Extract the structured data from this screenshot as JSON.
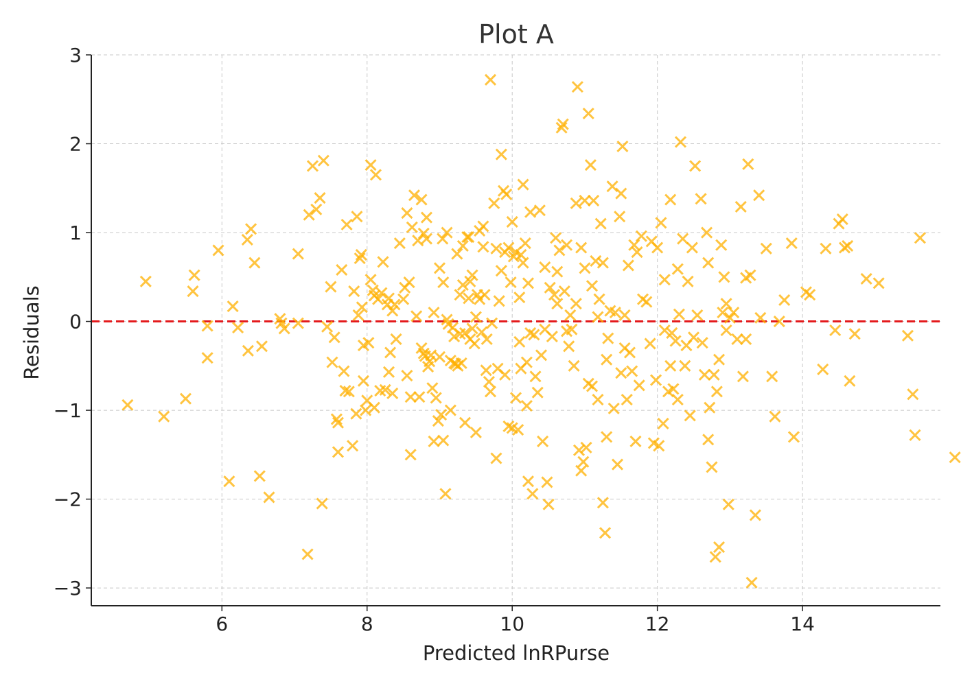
{
  "chart_data": {
    "type": "scatter",
    "title": "Plot A",
    "xlabel": "Predicted lnRPurse",
    "ylabel": "Residuals",
    "xlim": [
      4.2,
      15.9
    ],
    "ylim": [
      -3.2,
      3.0
    ],
    "xticks": [
      6,
      8,
      10,
      12,
      14
    ],
    "xtick_labels": [
      "6",
      "8",
      "10",
      "12",
      "14"
    ],
    "yticks": [
      -3,
      -2,
      -1,
      0,
      1,
      2,
      3
    ],
    "ytick_labels": [
      "−3",
      "−2",
      "−1",
      "0",
      "1",
      "2",
      "3"
    ],
    "grid": true,
    "marker": "x",
    "marker_color": "#FFB000",
    "reference_line": {
      "y": 0,
      "style": "dashed",
      "color": "#E41A1C"
    },
    "points": [
      [
        4.7,
        -0.94
      ],
      [
        4.95,
        0.45
      ],
      [
        5.2,
        -1.07
      ],
      [
        5.5,
        -0.87
      ],
      [
        5.62,
        0.52
      ],
      [
        5.6,
        0.34
      ],
      [
        5.8,
        -0.05
      ],
      [
        5.8,
        -0.41
      ],
      [
        5.95,
        0.8
      ],
      [
        6.1,
        -1.8
      ],
      [
        6.15,
        0.17
      ],
      [
        6.22,
        -0.07
      ],
      [
        6.36,
        -0.33
      ],
      [
        6.35,
        0.92
      ],
      [
        6.4,
        1.04
      ],
      [
        6.45,
        0.66
      ],
      [
        6.52,
        -1.74
      ],
      [
        6.55,
        -0.28
      ],
      [
        6.65,
        -1.98
      ],
      [
        6.8,
        0.03
      ],
      [
        6.82,
        -0.02
      ],
      [
        6.86,
        -0.08
      ],
      [
        7.05,
        0.76
      ],
      [
        7.05,
        -0.02
      ],
      [
        7.2,
        1.2
      ],
      [
        7.18,
        -2.62
      ],
      [
        7.25,
        1.75
      ],
      [
        7.3,
        1.26
      ],
      [
        7.35,
        1.39
      ],
      [
        7.38,
        -2.05
      ],
      [
        7.4,
        1.81
      ],
      [
        7.45,
        -0.06
      ],
      [
        7.5,
        0.39
      ],
      [
        7.52,
        -0.46
      ],
      [
        7.55,
        -0.18
      ],
      [
        7.58,
        -1.1
      ],
      [
        7.6,
        -1.14
      ],
      [
        7.6,
        -1.47
      ],
      [
        7.65,
        0.58
      ],
      [
        7.68,
        -0.56
      ],
      [
        7.7,
        -0.78
      ],
      [
        7.72,
        1.09
      ],
      [
        7.75,
        -0.79
      ],
      [
        7.8,
        -1.4
      ],
      [
        7.82,
        0.34
      ],
      [
        7.85,
        -1.04
      ],
      [
        7.86,
        1.18
      ],
      [
        7.88,
        0.07
      ],
      [
        7.9,
        0.71
      ],
      [
        7.92,
        0.75
      ],
      [
        7.93,
        0.16
      ],
      [
        7.95,
        -0.27
      ],
      [
        7.95,
        -0.67
      ],
      [
        7.98,
        -1.0
      ],
      [
        8.0,
        -0.89
      ],
      [
        8.02,
        -0.24
      ],
      [
        8.05,
        0.47
      ],
      [
        8.05,
        1.76
      ],
      [
        8.08,
        0.35
      ],
      [
        8.1,
        0.29
      ],
      [
        8.1,
        -0.97
      ],
      [
        8.12,
        1.65
      ],
      [
        8.15,
        0.25
      ],
      [
        8.18,
        -0.78
      ],
      [
        8.2,
        0.32
      ],
      [
        8.22,
        0.67
      ],
      [
        8.25,
        -0.77
      ],
      [
        8.28,
        0.19
      ],
      [
        8.3,
        0.26
      ],
      [
        8.3,
        -0.57
      ],
      [
        8.32,
        -0.35
      ],
      [
        8.35,
        0.12
      ],
      [
        8.35,
        -0.81
      ],
      [
        8.38,
        0.19
      ],
      [
        8.4,
        -0.2
      ],
      [
        8.45,
        0.88
      ],
      [
        8.5,
        0.25
      ],
      [
        8.52,
        0.38
      ],
      [
        8.55,
        1.22
      ],
      [
        8.55,
        -0.61
      ],
      [
        8.58,
        0.44
      ],
      [
        8.6,
        -0.85
      ],
      [
        8.6,
        -1.5
      ],
      [
        8.62,
        1.06
      ],
      [
        8.65,
        1.42
      ],
      [
        8.68,
        0.06
      ],
      [
        8.7,
        0.91
      ],
      [
        8.72,
        -0.85
      ],
      [
        8.75,
        1.37
      ],
      [
        8.75,
        -0.3
      ],
      [
        8.78,
        0.99
      ],
      [
        8.78,
        -0.36
      ],
      [
        8.8,
        -0.39
      ],
      [
        8.82,
        1.17
      ],
      [
        8.82,
        0.93
      ],
      [
        8.84,
        -0.51
      ],
      [
        8.86,
        -0.45
      ],
      [
        8.88,
        -0.38
      ],
      [
        8.9,
        -0.75
      ],
      [
        8.92,
        0.1
      ],
      [
        8.92,
        -1.35
      ],
      [
        8.95,
        -0.86
      ],
      [
        8.98,
        -1.12
      ],
      [
        9.0,
        0.6
      ],
      [
        9.0,
        -0.4
      ],
      [
        9.02,
        -1.05
      ],
      [
        9.04,
        0.93
      ],
      [
        9.05,
        0.44
      ],
      [
        9.05,
        -1.34
      ],
      [
        9.08,
        -1.94
      ],
      [
        9.1,
        1.0
      ],
      [
        9.1,
        0.02
      ],
      [
        9.12,
        -0.03
      ],
      [
        9.15,
        -0.44
      ],
      [
        9.15,
        -1.0
      ],
      [
        9.18,
        -0.07
      ],
      [
        9.2,
        -0.17
      ],
      [
        9.2,
        -0.47
      ],
      [
        9.22,
        -0.48
      ],
      [
        9.24,
        0.76
      ],
      [
        9.25,
        -0.5
      ],
      [
        9.28,
        0.3
      ],
      [
        9.28,
        -0.14
      ],
      [
        9.3,
        -0.47
      ],
      [
        9.32,
        0.85
      ],
      [
        9.32,
        0.41
      ],
      [
        9.35,
        -1.14
      ],
      [
        9.35,
        -0.13
      ],
      [
        9.38,
        0.95
      ],
      [
        9.4,
        0.95
      ],
      [
        9.4,
        0.26
      ],
      [
        9.42,
        -0.2
      ],
      [
        9.42,
        0.45
      ],
      [
        9.45,
        0.52
      ],
      [
        9.45,
        -0.08
      ],
      [
        9.48,
        -0.25
      ],
      [
        9.5,
        -1.25
      ],
      [
        9.5,
        0.05
      ],
      [
        9.52,
        0.3
      ],
      [
        9.55,
        1.02
      ],
      [
        9.55,
        0.25
      ],
      [
        9.58,
        -0.12
      ],
      [
        9.6,
        1.07
      ],
      [
        9.6,
        0.84
      ],
      [
        9.62,
        0.3
      ],
      [
        9.64,
        -0.55
      ],
      [
        9.65,
        -0.2
      ],
      [
        9.68,
        -0.68
      ],
      [
        9.7,
        -0.79
      ],
      [
        9.7,
        2.72
      ],
      [
        9.72,
        -0.02
      ],
      [
        9.75,
        1.33
      ],
      [
        9.78,
        0.82
      ],
      [
        9.78,
        -1.54
      ],
      [
        9.8,
        -0.53
      ],
      [
        9.82,
        0.23
      ],
      [
        9.85,
        0.57
      ],
      [
        9.85,
        1.88
      ],
      [
        9.88,
        1.47
      ],
      [
        9.9,
        0.78
      ],
      [
        9.9,
        -0.6
      ],
      [
        9.92,
        1.43
      ],
      [
        9.95,
        0.83
      ],
      [
        9.95,
        -1.18
      ],
      [
        9.98,
        0.44
      ],
      [
        10.0,
        1.12
      ],
      [
        10.0,
        -1.2
      ],
      [
        10.02,
        0.73
      ],
      [
        10.05,
        0.78
      ],
      [
        10.05,
        -0.86
      ],
      [
        10.08,
        -1.22
      ],
      [
        10.1,
        -0.23
      ],
      [
        10.1,
        0.27
      ],
      [
        10.12,
        0.75
      ],
      [
        10.12,
        -0.53
      ],
      [
        10.15,
        1.54
      ],
      [
        10.15,
        0.66
      ],
      [
        10.18,
        0.88
      ],
      [
        10.2,
        -0.95
      ],
      [
        10.2,
        -0.46
      ],
      [
        10.22,
        -1.8
      ],
      [
        10.22,
        0.43
      ],
      [
        10.25,
        -0.13
      ],
      [
        10.25,
        1.23
      ],
      [
        10.28,
        -1.94
      ],
      [
        10.3,
        -0.15
      ],
      [
        10.32,
        -0.62
      ],
      [
        10.35,
        -0.8
      ],
      [
        10.38,
        1.25
      ],
      [
        10.4,
        -0.38
      ],
      [
        10.42,
        -1.35
      ],
      [
        10.45,
        -0.09
      ],
      [
        10.45,
        0.61
      ],
      [
        10.48,
        -1.81
      ],
      [
        10.5,
        -2.06
      ],
      [
        10.52,
        0.38
      ],
      [
        10.55,
        -0.17
      ],
      [
        10.58,
        0.3
      ],
      [
        10.6,
        0.94
      ],
      [
        10.62,
        0.2
      ],
      [
        10.62,
        0.56
      ],
      [
        10.65,
        0.8
      ],
      [
        10.68,
        2.18
      ],
      [
        10.7,
        2.22
      ],
      [
        10.72,
        0.34
      ],
      [
        10.75,
        0.86
      ],
      [
        10.75,
        -0.11
      ],
      [
        10.78,
        -0.28
      ],
      [
        10.8,
        0.07
      ],
      [
        10.82,
        -0.09
      ],
      [
        10.85,
        -0.5
      ],
      [
        10.88,
        0.2
      ],
      [
        10.88,
        1.33
      ],
      [
        10.9,
        2.64
      ],
      [
        10.92,
        -1.45
      ],
      [
        10.95,
        -1.68
      ],
      [
        10.95,
        0.83
      ],
      [
        10.98,
        -1.58
      ],
      [
        11.0,
        0.6
      ],
      [
        11.0,
        1.36
      ],
      [
        11.02,
        -1.42
      ],
      [
        11.05,
        2.34
      ],
      [
        11.05,
        -0.7
      ],
      [
        11.08,
        1.76
      ],
      [
        11.1,
        -0.73
      ],
      [
        11.1,
        0.4
      ],
      [
        11.12,
        1.36
      ],
      [
        11.15,
        0.68
      ],
      [
        11.18,
        -0.88
      ],
      [
        11.18,
        0.05
      ],
      [
        11.2,
        0.25
      ],
      [
        11.22,
        1.1
      ],
      [
        11.25,
        -2.04
      ],
      [
        11.25,
        0.66
      ],
      [
        11.28,
        -2.38
      ],
      [
        11.3,
        -1.3
      ],
      [
        11.3,
        -0.43
      ],
      [
        11.32,
        -0.19
      ],
      [
        11.35,
        0.12
      ],
      [
        11.38,
        1.52
      ],
      [
        11.4,
        -0.98
      ],
      [
        11.42,
        0.1
      ],
      [
        11.45,
        -1.61
      ],
      [
        11.48,
        1.18
      ],
      [
        11.5,
        -0.58
      ],
      [
        11.5,
        1.44
      ],
      [
        11.52,
        1.97
      ],
      [
        11.55,
        0.07
      ],
      [
        11.55,
        -0.3
      ],
      [
        11.58,
        -0.88
      ],
      [
        11.6,
        0.63
      ],
      [
        11.62,
        -0.35
      ],
      [
        11.65,
        -0.56
      ],
      [
        11.68,
        0.86
      ],
      [
        11.7,
        -1.35
      ],
      [
        11.72,
        0.78
      ],
      [
        11.75,
        -0.72
      ],
      [
        11.78,
        0.96
      ],
      [
        11.8,
        0.25
      ],
      [
        11.85,
        0.22
      ],
      [
        11.9,
        -0.25
      ],
      [
        11.92,
        0.9
      ],
      [
        11.95,
        -1.37
      ],
      [
        11.98,
        -0.66
      ],
      [
        12.0,
        0.83
      ],
      [
        12.02,
        -1.4
      ],
      [
        12.05,
        1.11
      ],
      [
        12.08,
        -1.15
      ],
      [
        12.1,
        -0.1
      ],
      [
        12.1,
        0.47
      ],
      [
        12.15,
        -0.79
      ],
      [
        12.18,
        1.37
      ],
      [
        12.18,
        -0.5
      ],
      [
        12.2,
        -0.13
      ],
      [
        12.22,
        -0.76
      ],
      [
        12.25,
        -0.22
      ],
      [
        12.28,
        0.59
      ],
      [
        12.28,
        -0.88
      ],
      [
        12.3,
        0.08
      ],
      [
        12.32,
        2.02
      ],
      [
        12.35,
        0.93
      ],
      [
        12.38,
        -0.5
      ],
      [
        12.4,
        -0.27
      ],
      [
        12.42,
        0.45
      ],
      [
        12.45,
        -1.06
      ],
      [
        12.48,
        0.83
      ],
      [
        12.5,
        -0.18
      ],
      [
        12.52,
        1.75
      ],
      [
        12.55,
        0.07
      ],
      [
        12.6,
        1.38
      ],
      [
        12.62,
        -0.24
      ],
      [
        12.65,
        -0.6
      ],
      [
        12.68,
        1.0
      ],
      [
        12.7,
        -1.33
      ],
      [
        12.7,
        0.66
      ],
      [
        12.72,
        -0.97
      ],
      [
        12.75,
        -1.64
      ],
      [
        12.78,
        -0.6
      ],
      [
        12.8,
        -2.65
      ],
      [
        12.82,
        -0.79
      ],
      [
        12.85,
        -2.54
      ],
      [
        12.85,
        -0.43
      ],
      [
        12.88,
        0.86
      ],
      [
        12.9,
        0.1
      ],
      [
        12.92,
        0.5
      ],
      [
        12.95,
        0.2
      ],
      [
        12.95,
        -0.1
      ],
      [
        12.98,
        -2.06
      ],
      [
        13.0,
        0.04
      ],
      [
        13.05,
        0.1
      ],
      [
        13.1,
        -0.2
      ],
      [
        13.15,
        1.29
      ],
      [
        13.18,
        -0.62
      ],
      [
        13.22,
        0.49
      ],
      [
        13.22,
        -0.2
      ],
      [
        13.25,
        1.77
      ],
      [
        13.28,
        0.52
      ],
      [
        13.3,
        -2.94
      ],
      [
        13.35,
        -2.18
      ],
      [
        13.4,
        1.42
      ],
      [
        13.42,
        0.04
      ],
      [
        13.5,
        0.82
      ],
      [
        13.58,
        -0.62
      ],
      [
        13.62,
        -1.07
      ],
      [
        13.68,
        0.0
      ],
      [
        13.75,
        0.24
      ],
      [
        13.85,
        0.88
      ],
      [
        13.88,
        -1.3
      ],
      [
        14.05,
        0.33
      ],
      [
        14.1,
        0.3
      ],
      [
        14.28,
        -0.54
      ],
      [
        14.32,
        0.82
      ],
      [
        14.45,
        -0.1
      ],
      [
        14.5,
        1.1
      ],
      [
        14.55,
        1.15
      ],
      [
        14.58,
        0.83
      ],
      [
        14.62,
        0.85
      ],
      [
        14.65,
        -0.67
      ],
      [
        14.72,
        -0.14
      ],
      [
        14.88,
        0.48
      ],
      [
        15.05,
        0.43
      ],
      [
        15.45,
        -0.16
      ],
      [
        15.52,
        -0.82
      ],
      [
        15.55,
        -1.28
      ],
      [
        15.62,
        0.94
      ],
      [
        16.1,
        -1.53
      ]
    ]
  }
}
